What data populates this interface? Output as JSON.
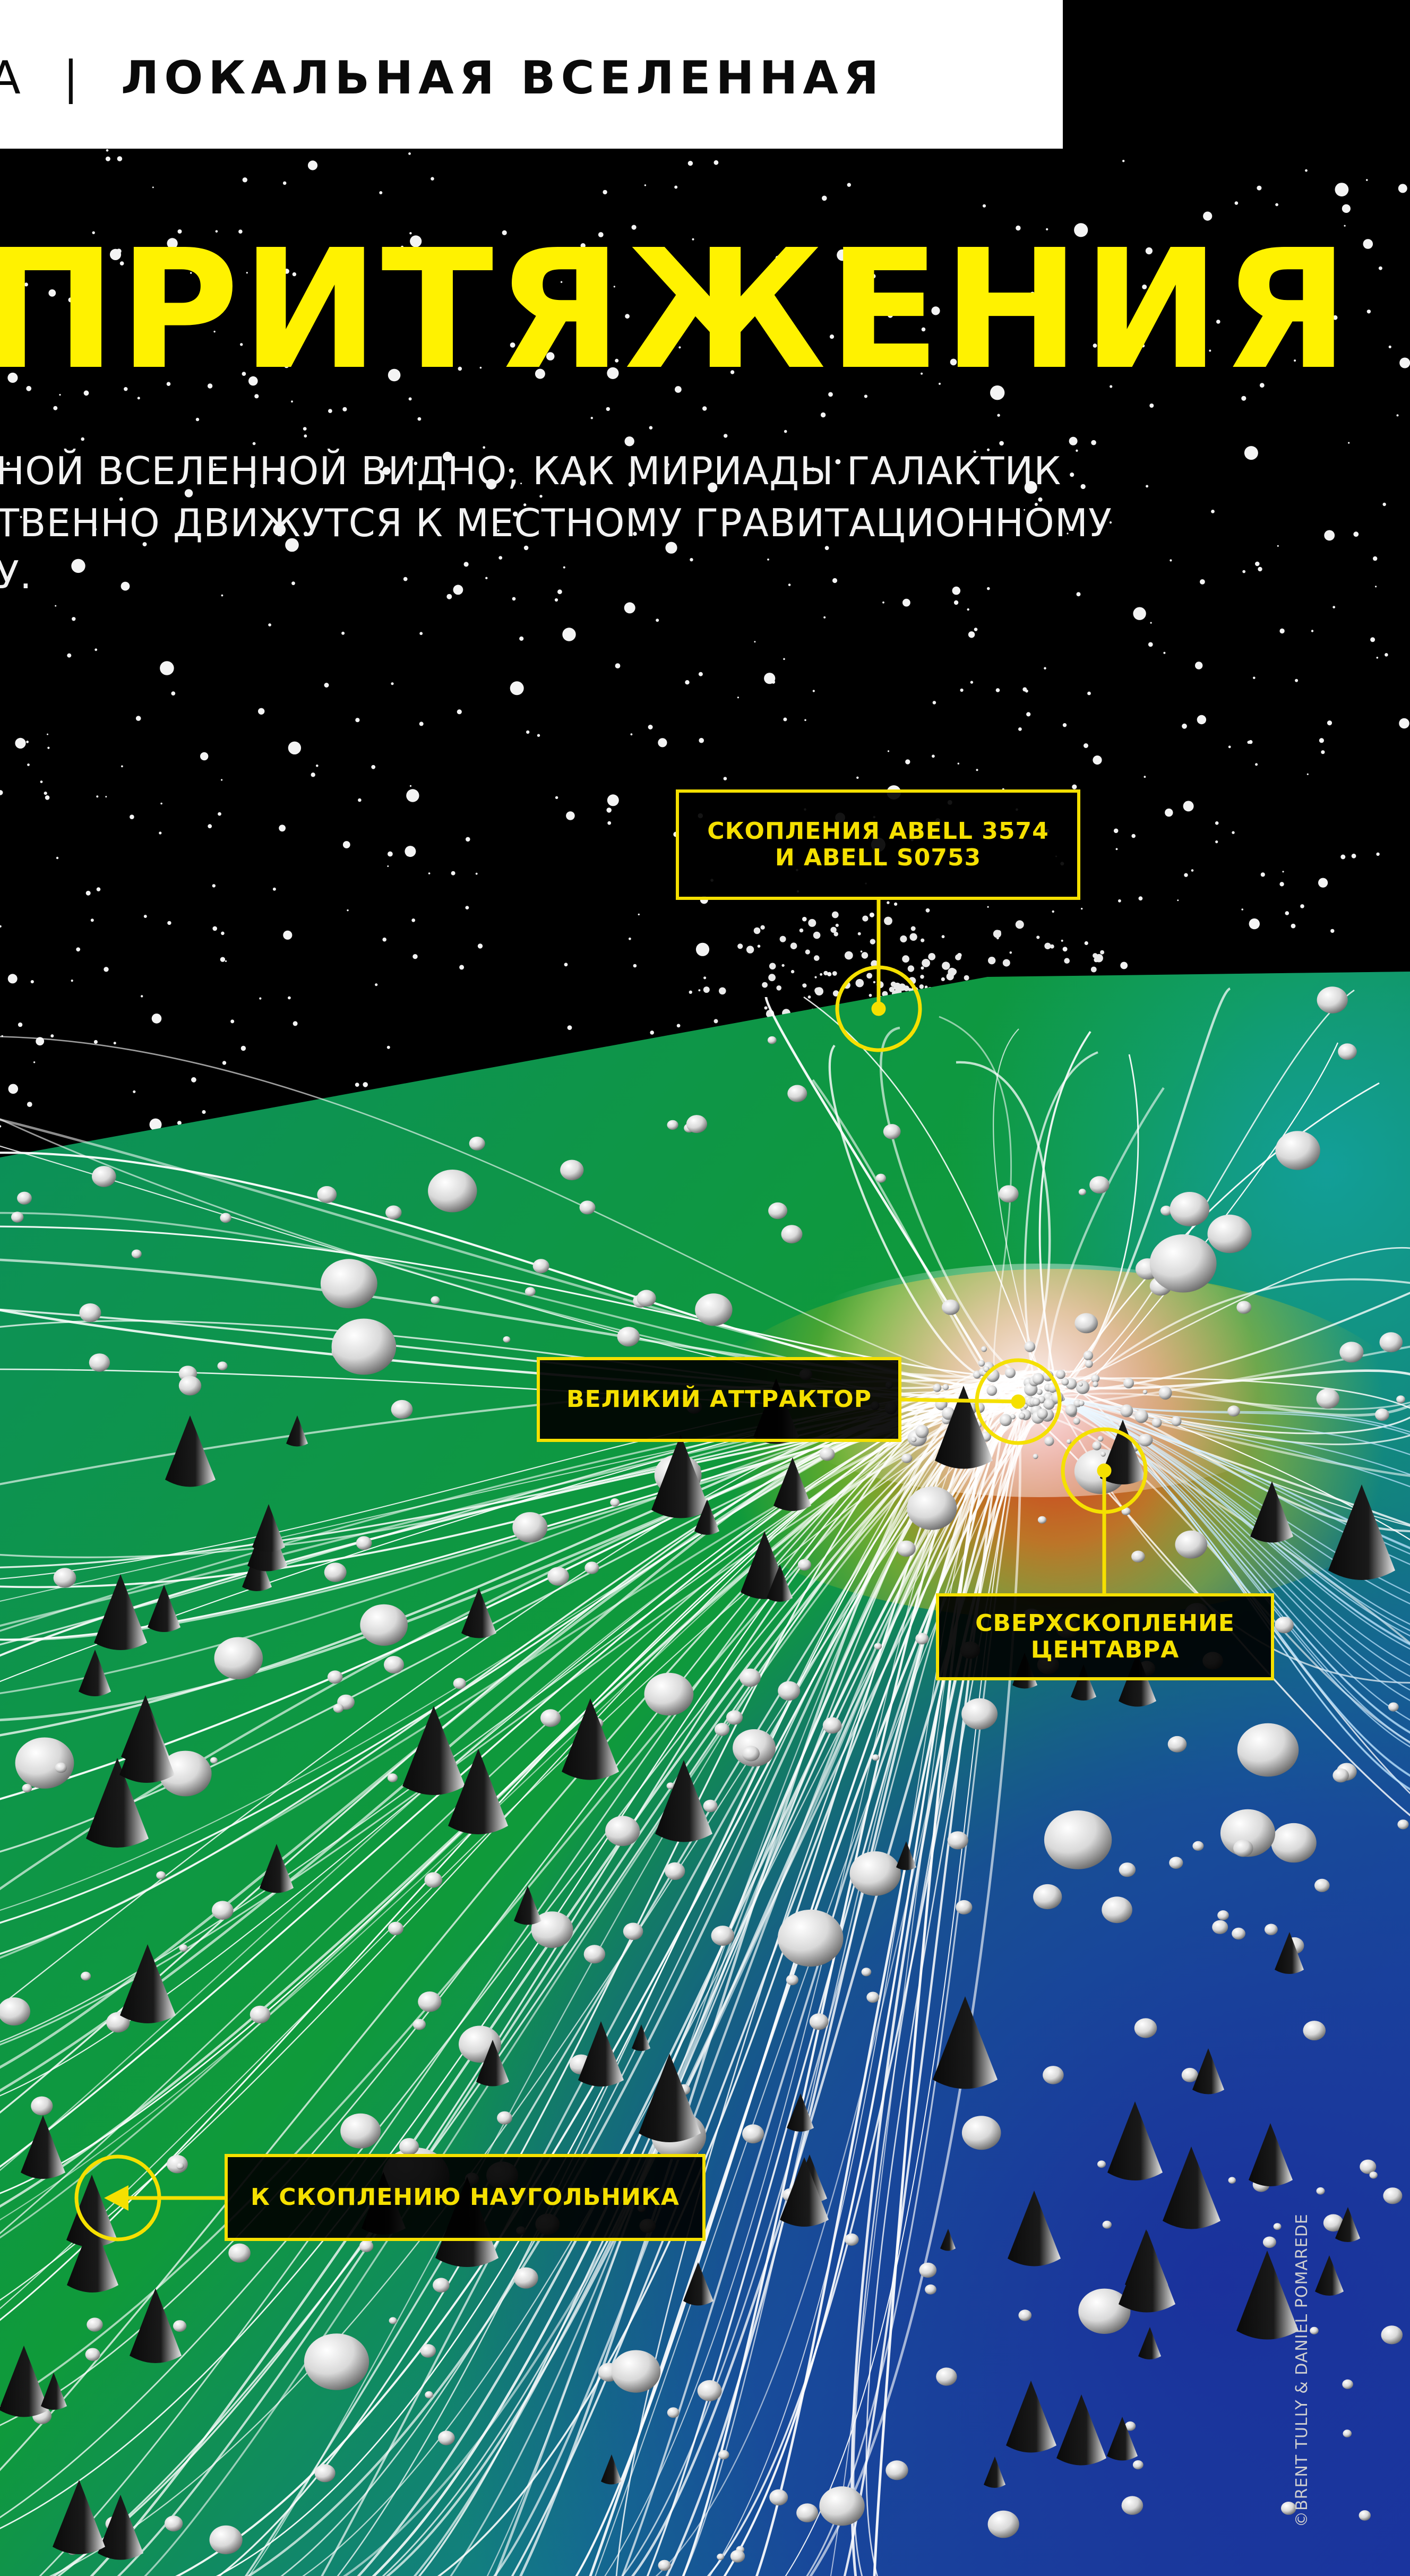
{
  "header": {
    "prefix": "А",
    "divider": "|",
    "section": "ЛОКАЛЬНАЯ ВСЕЛЕННАЯ"
  },
  "headline": "ПРИТЯЖЕНИЯ",
  "subtitle": {
    "line1": "НОЙ ВСЕЛЕННОЙ ВИДНО, КАК МИРИАДЫ ГАЛАКТИК",
    "line2": "ТВЕННО ДВИЖУТСЯ К МЕСТНОМУ ГРАВИТАЦИОННОМУ",
    "line3": "У."
  },
  "callouts": {
    "abell": {
      "line1": "СКОПЛЕНИЯ ABELL 3574",
      "line2": "И ABELL S0753"
    },
    "attractor": "ВЕЛИКИЙ АТТРАКТОР",
    "centaurus": {
      "line1": "СВЕРХСКОПЛЕНИЕ",
      "line2": "ЦЕНТАВРА"
    },
    "norma": "К СКОПЛЕНИЮ НАУГОЛЬНИКА"
  },
  "credit": "©BRENT TULLY & DANIEL POMAREDE",
  "colors": {
    "accent_yellow": "#f5e000",
    "headline_yellow": "#fff200",
    "background": "#000000"
  }
}
